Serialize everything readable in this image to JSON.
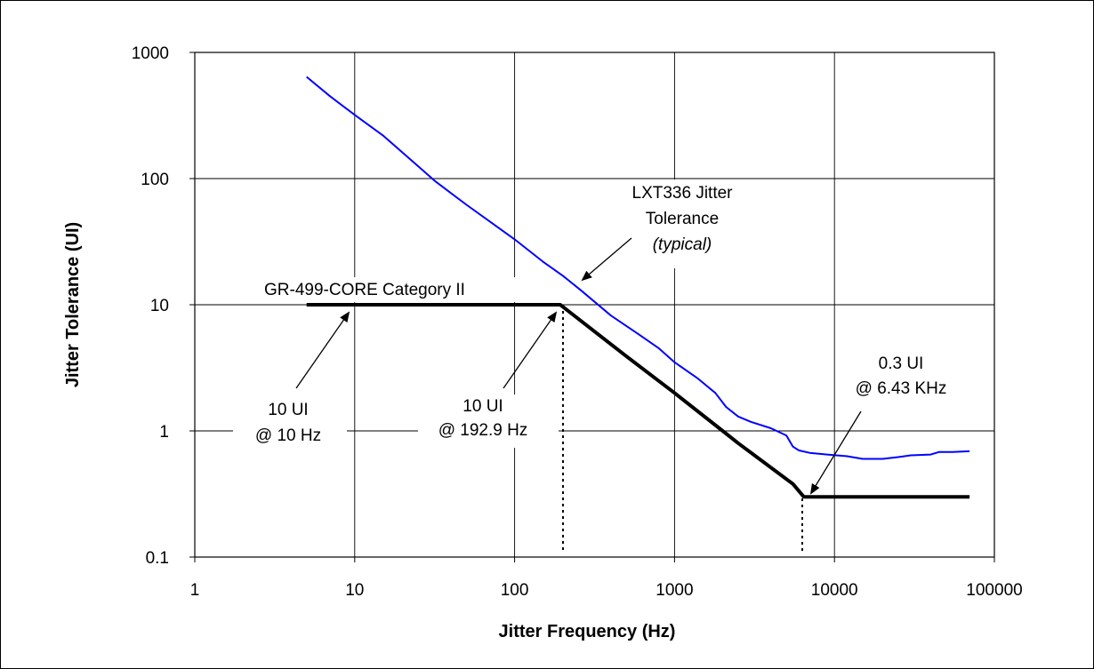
{
  "chart_data": {
    "type": "line",
    "xscale": "log",
    "yscale": "log",
    "xlim": [
      1,
      100000
    ],
    "ylim": [
      0.1,
      1000
    ],
    "grid": true,
    "xlabel": "Jitter Frequency (Hz)",
    "ylabel": "Jitter Tolerance (UI)",
    "x_ticks": [
      "1",
      "10",
      "100",
      "1000",
      "10000",
      "100000"
    ],
    "y_ticks": [
      "0.1",
      "1",
      "10",
      "100",
      "1000"
    ],
    "series": [
      {
        "color": "#0000ff",
        "points": [
          [
            5,
            640
          ],
          [
            7,
            450
          ],
          [
            10,
            320
          ],
          [
            15,
            220
          ],
          [
            20,
            160
          ],
          [
            25,
            125
          ],
          [
            32,
            95
          ],
          [
            50,
            62
          ],
          [
            100,
            33
          ],
          [
            150,
            22
          ],
          [
            200,
            17
          ],
          [
            260,
            13
          ],
          [
            400,
            8.2
          ],
          [
            600,
            5.8
          ],
          [
            800,
            4.5
          ],
          [
            1000,
            3.5
          ],
          [
            1400,
            2.6
          ],
          [
            1800,
            2.0
          ],
          [
            2100,
            1.55
          ],
          [
            2500,
            1.3
          ],
          [
            3000,
            1.18
          ],
          [
            4000,
            1.05
          ],
          [
            5000,
            0.92
          ],
          [
            5500,
            0.75
          ],
          [
            6000,
            0.7
          ],
          [
            7000,
            0.67
          ],
          [
            9000,
            0.65
          ],
          [
            12000,
            0.63
          ],
          [
            15000,
            0.6
          ],
          [
            20000,
            0.6
          ],
          [
            25000,
            0.62
          ],
          [
            30000,
            0.64
          ],
          [
            40000,
            0.65
          ],
          [
            45000,
            0.68
          ],
          [
            55000,
            0.68
          ],
          [
            70000,
            0.69
          ]
        ]
      },
      {
        "color": "#000000",
        "points": [
          [
            5,
            10
          ],
          [
            10,
            10
          ],
          [
            100,
            10
          ],
          [
            192.9,
            10
          ],
          [
            500,
            3.9
          ],
          [
            1000,
            2.0
          ],
          [
            2000,
            1.0
          ],
          [
            2500,
            0.8
          ],
          [
            5500,
            0.38
          ],
          [
            6430,
            0.3
          ],
          [
            20000,
            0.3
          ],
          [
            70000,
            0.3
          ]
        ]
      }
    ],
    "annotations": {
      "lxt_line1": "LXT336 Jitter",
      "lxt_line2": "Tolerance",
      "lxt_line3": "(typical)",
      "gr_label": "GR-499-CORE Category II",
      "a1_line1": "10 UI",
      "a1_line2": "@ 10 Hz",
      "a2_line1": "10 UI",
      "a2_line2": "@ 192.9 Hz",
      "a3_line1": "0.3 UI",
      "a3_line2": "@ 6.43 KHz"
    }
  }
}
